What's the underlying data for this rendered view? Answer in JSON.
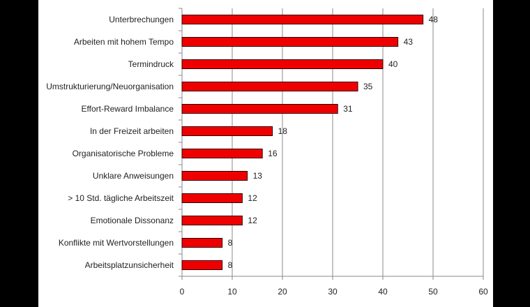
{
  "chart_data": {
    "type": "bar",
    "orientation": "horizontal",
    "categories": [
      "Unterbrechungen",
      "Arbeiten mit hohem Tempo",
      "Termindruck",
      "Umstrukturierung/Neuorganisation",
      "Effort-Reward Imbalance",
      "In der Freizeit arbeiten",
      "Organisatorische Probleme",
      "Unklare Anweisungen",
      "> 10 Std. tägliche Arbeitszeit",
      "Emotionale Dissonanz",
      "Konflikte mit Wertvorstellungen",
      "Arbeitsplatzunsicherheit"
    ],
    "values": [
      48,
      43,
      40,
      35,
      31,
      18,
      16,
      13,
      12,
      12,
      8,
      8
    ],
    "xlim": [
      0,
      60
    ],
    "xticks": [
      0,
      10,
      20,
      30,
      40,
      50,
      60
    ],
    "grid": "vertical",
    "bar_color": "#ee0000",
    "bar_edge_color": "#330000",
    "title": "",
    "xlabel": "",
    "ylabel": ""
  }
}
